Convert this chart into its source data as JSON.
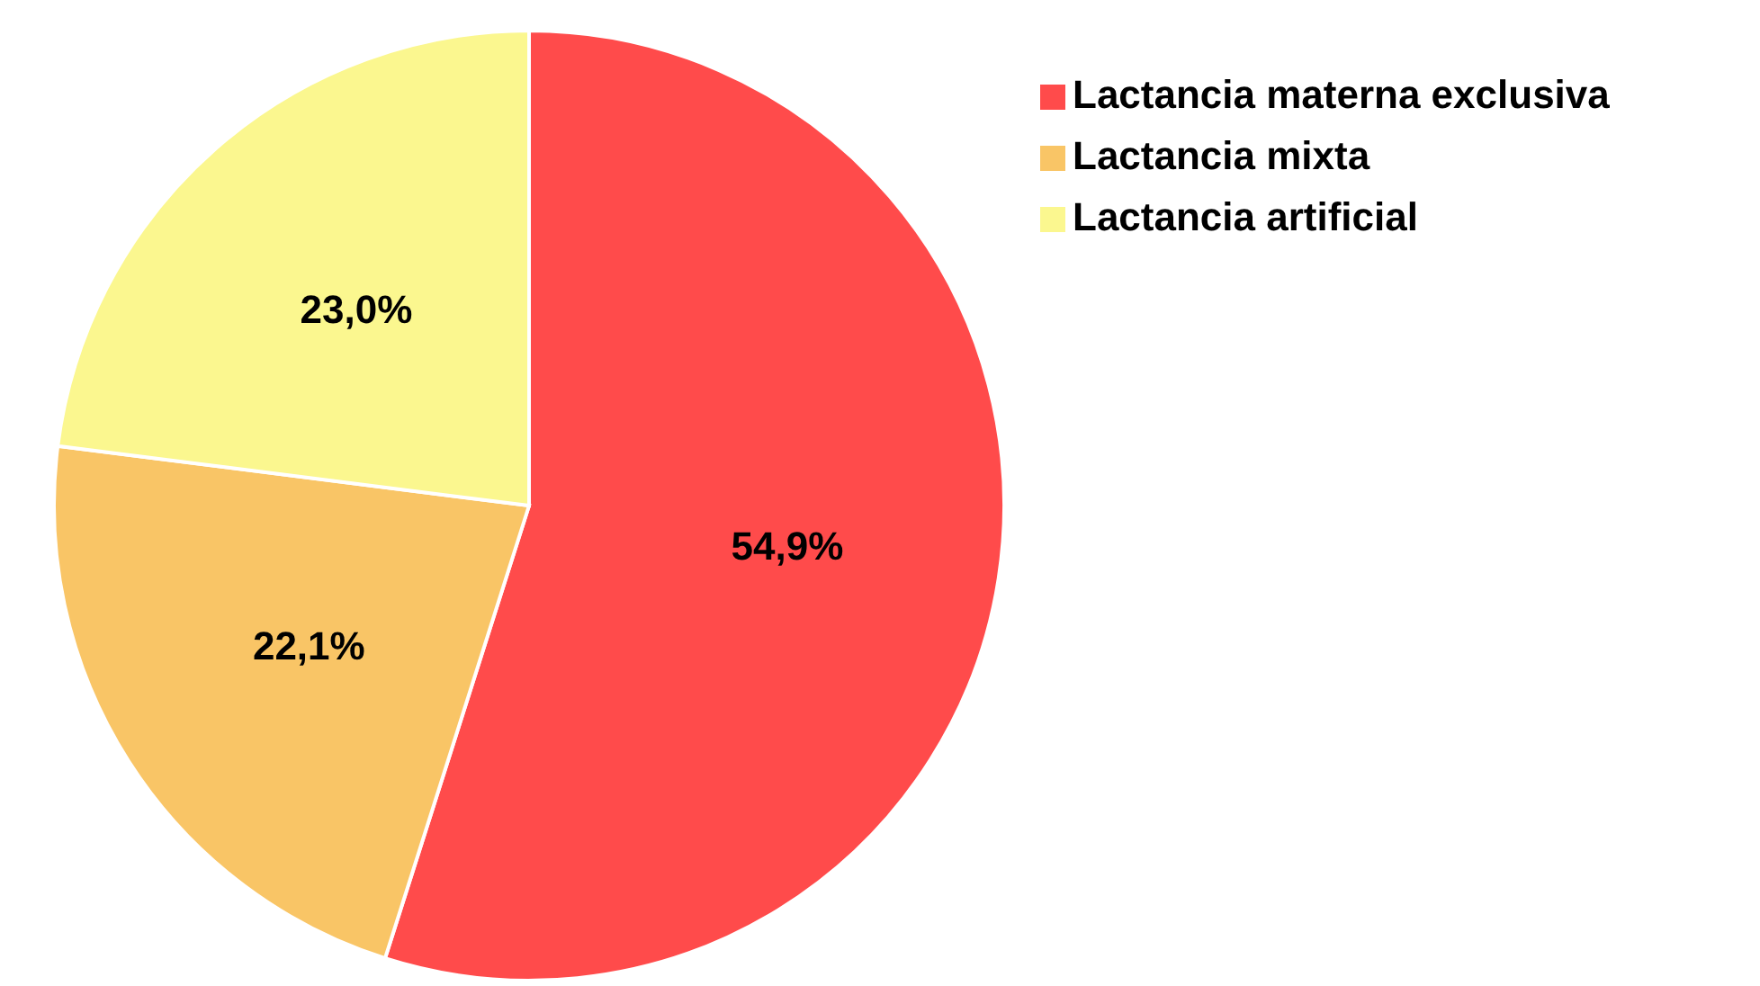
{
  "chart_data": {
    "type": "pie",
    "categories": [
      "Lactancia materna exclusiva",
      "Lactancia mixta",
      "Lactancia artificial"
    ],
    "values": [
      54.9,
      22.1,
      23.0
    ],
    "colors": [
      "#ff4b4b",
      "#f9c566",
      "#fbf78f"
    ],
    "value_labels": [
      "54,9%",
      "22,1%",
      "23,0%"
    ],
    "legend": "top right"
  }
}
